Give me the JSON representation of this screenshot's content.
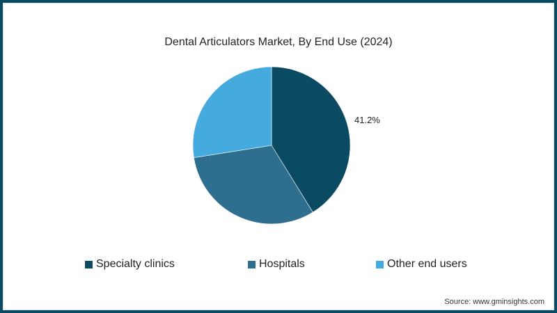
{
  "chart_data": {
    "type": "pie",
    "title": "Dental Articulators Market, By End Use (2024)",
    "categories": [
      "Specialty clinics",
      "Hospitals",
      "Other end users"
    ],
    "values": [
      41.2,
      31.3,
      27.5
    ],
    "colors": [
      "#0a4a63",
      "#2e6e8e",
      "#45aade"
    ],
    "data_labels": [
      "41.2%",
      "",
      ""
    ],
    "start_angle": "top, clockwise",
    "legend_position": "bottom"
  },
  "title": "Dental Articulators Market, By End Use (2024)",
  "slice_label": "41.2%",
  "legend": [
    {
      "label": "Specialty clinics",
      "color": "#0a4a63"
    },
    {
      "label": "Hospitals",
      "color": "#2e6e8e"
    },
    {
      "label": "Other end users",
      "color": "#45aade"
    }
  ],
  "source": "Source: www.gminsights.com",
  "colors": {
    "border": "#0c4a62"
  }
}
